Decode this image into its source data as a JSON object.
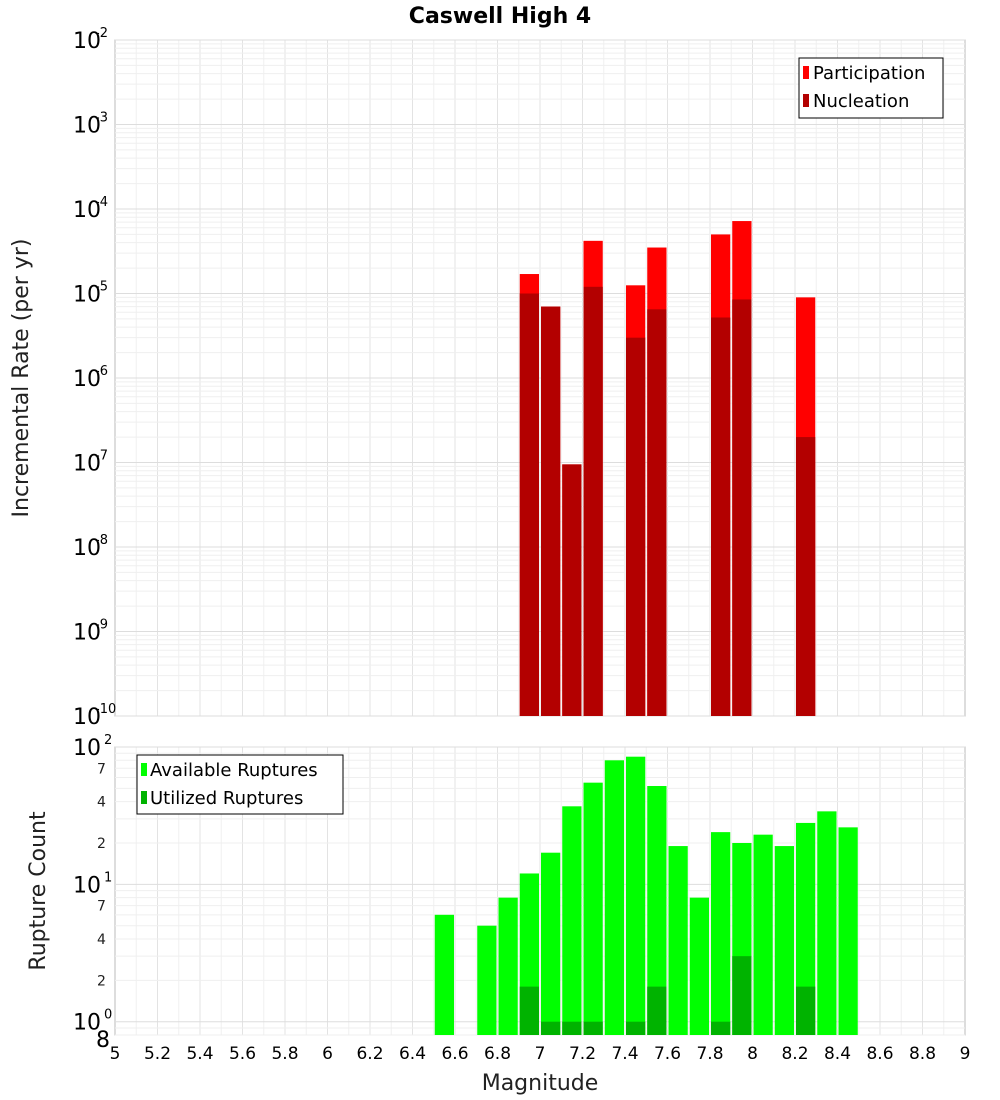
{
  "chart_data": [
    {
      "type": "bar",
      "title": "Caswell High 4",
      "ylabel": "Incremental Rate (per yr)",
      "xlabel": "",
      "yscale": "log",
      "ylim": [
        1e-10,
        0.01
      ],
      "xlim": [
        5,
        9
      ],
      "bar_width": 0.1,
      "grid": true,
      "legend_position": "top-right",
      "y_ticks": [
        {
          "base": "10",
          "exp": "-10",
          "value": 1e-10
        },
        {
          "base": "10",
          "exp": "-9",
          "value": 1e-09
        },
        {
          "base": "10",
          "exp": "-8",
          "value": 1e-08
        },
        {
          "base": "10",
          "exp": "-7",
          "value": 1e-07
        },
        {
          "base": "10",
          "exp": "-6",
          "value": 1e-06
        },
        {
          "base": "10",
          "exp": "-5",
          "value": 1e-05
        },
        {
          "base": "10",
          "exp": "-4",
          "value": 0.0001
        },
        {
          "base": "10",
          "exp": "-3",
          "value": 0.001
        },
        {
          "base": "10",
          "exp": "-2",
          "value": 0.01
        }
      ],
      "series": [
        {
          "name": "Participation",
          "color": "#ff0000",
          "points": [
            {
              "x": 6.95,
              "y": 1.7e-05
            },
            {
              "x": 7.05,
              "y": 7e-06
            },
            {
              "x": 7.15,
              "y": 9.5e-08
            },
            {
              "x": 7.25,
              "y": 4.2e-05
            },
            {
              "x": 7.45,
              "y": 1.25e-05
            },
            {
              "x": 7.55,
              "y": 3.5e-05
            },
            {
              "x": 7.85,
              "y": 5e-05
            },
            {
              "x": 7.95,
              "y": 7.2e-05
            },
            {
              "x": 8.25,
              "y": 9e-06
            }
          ]
        },
        {
          "name": "Nucleation",
          "color": "#b30000",
          "points": [
            {
              "x": 6.95,
              "y": 1e-05
            },
            {
              "x": 7.05,
              "y": 7e-06
            },
            {
              "x": 7.15,
              "y": 9.5e-08
            },
            {
              "x": 7.25,
              "y": 1.2e-05
            },
            {
              "x": 7.45,
              "y": 3e-06
            },
            {
              "x": 7.55,
              "y": 6.5e-06
            },
            {
              "x": 7.85,
              "y": 5.2e-06
            },
            {
              "x": 7.95,
              "y": 8.5e-06
            },
            {
              "x": 8.25,
              "y": 2e-07
            }
          ]
        }
      ]
    },
    {
      "type": "bar",
      "title": "",
      "ylabel": "Rupture Count",
      "xlabel": "Magnitude",
      "yscale": "log",
      "ylim": [
        0.8,
        100
      ],
      "xlim": [
        5,
        9
      ],
      "bar_width": 0.1,
      "grid": true,
      "legend_position": "top-left",
      "x_tick_labels": [
        "5",
        "5.2",
        "5.4",
        "5.6",
        "5.8",
        "6",
        "6.2",
        "6.4",
        "6.6",
        "6.8",
        "7",
        "7.2",
        "7.4",
        "7.6",
        "7.8",
        "8",
        "8.2",
        "8.4",
        "8.6",
        "8.8",
        "9"
      ],
      "y_ticks": [
        {
          "base": "10",
          "exp": "2",
          "value": 100
        },
        {
          "base": "10",
          "exp": "1",
          "value": 10
        },
        {
          "base": "10",
          "exp": "0",
          "value": 1
        }
      ],
      "y_minor_ticks": [
        {
          "label": "7",
          "value": 70
        },
        {
          "label": "4",
          "value": 40
        },
        {
          "label": "2",
          "value": 20
        },
        {
          "label": "7",
          "value": 7
        },
        {
          "label": "4",
          "value": 4
        },
        {
          "label": "2",
          "value": 2
        },
        {
          "label": "8",
          "value": 0.8
        }
      ],
      "series": [
        {
          "name": "Available Ruptures",
          "color": "#00ff00",
          "points": [
            {
              "x": 6.55,
              "y": 6
            },
            {
              "x": 6.75,
              "y": 5
            },
            {
              "x": 6.85,
              "y": 8
            },
            {
              "x": 6.95,
              "y": 12
            },
            {
              "x": 7.05,
              "y": 17
            },
            {
              "x": 7.15,
              "y": 37
            },
            {
              "x": 7.25,
              "y": 55
            },
            {
              "x": 7.35,
              "y": 80
            },
            {
              "x": 7.45,
              "y": 85
            },
            {
              "x": 7.55,
              "y": 52
            },
            {
              "x": 7.65,
              "y": 19
            },
            {
              "x": 7.75,
              "y": 8
            },
            {
              "x": 7.85,
              "y": 24
            },
            {
              "x": 7.95,
              "y": 20
            },
            {
              "x": 8.05,
              "y": 23
            },
            {
              "x": 8.15,
              "y": 19
            },
            {
              "x": 8.25,
              "y": 28
            },
            {
              "x": 8.35,
              "y": 34
            },
            {
              "x": 8.45,
              "y": 26
            }
          ]
        },
        {
          "name": "Utilized Ruptures",
          "color": "#00b300",
          "points": [
            {
              "x": 6.95,
              "y": 1.8
            },
            {
              "x": 7.05,
              "y": 1
            },
            {
              "x": 7.15,
              "y": 1
            },
            {
              "x": 7.25,
              "y": 1
            },
            {
              "x": 7.45,
              "y": 1
            },
            {
              "x": 7.55,
              "y": 1.8
            },
            {
              "x": 7.85,
              "y": 1
            },
            {
              "x": 7.95,
              "y": 3
            },
            {
              "x": 8.25,
              "y": 1.8
            }
          ]
        }
      ]
    }
  ]
}
